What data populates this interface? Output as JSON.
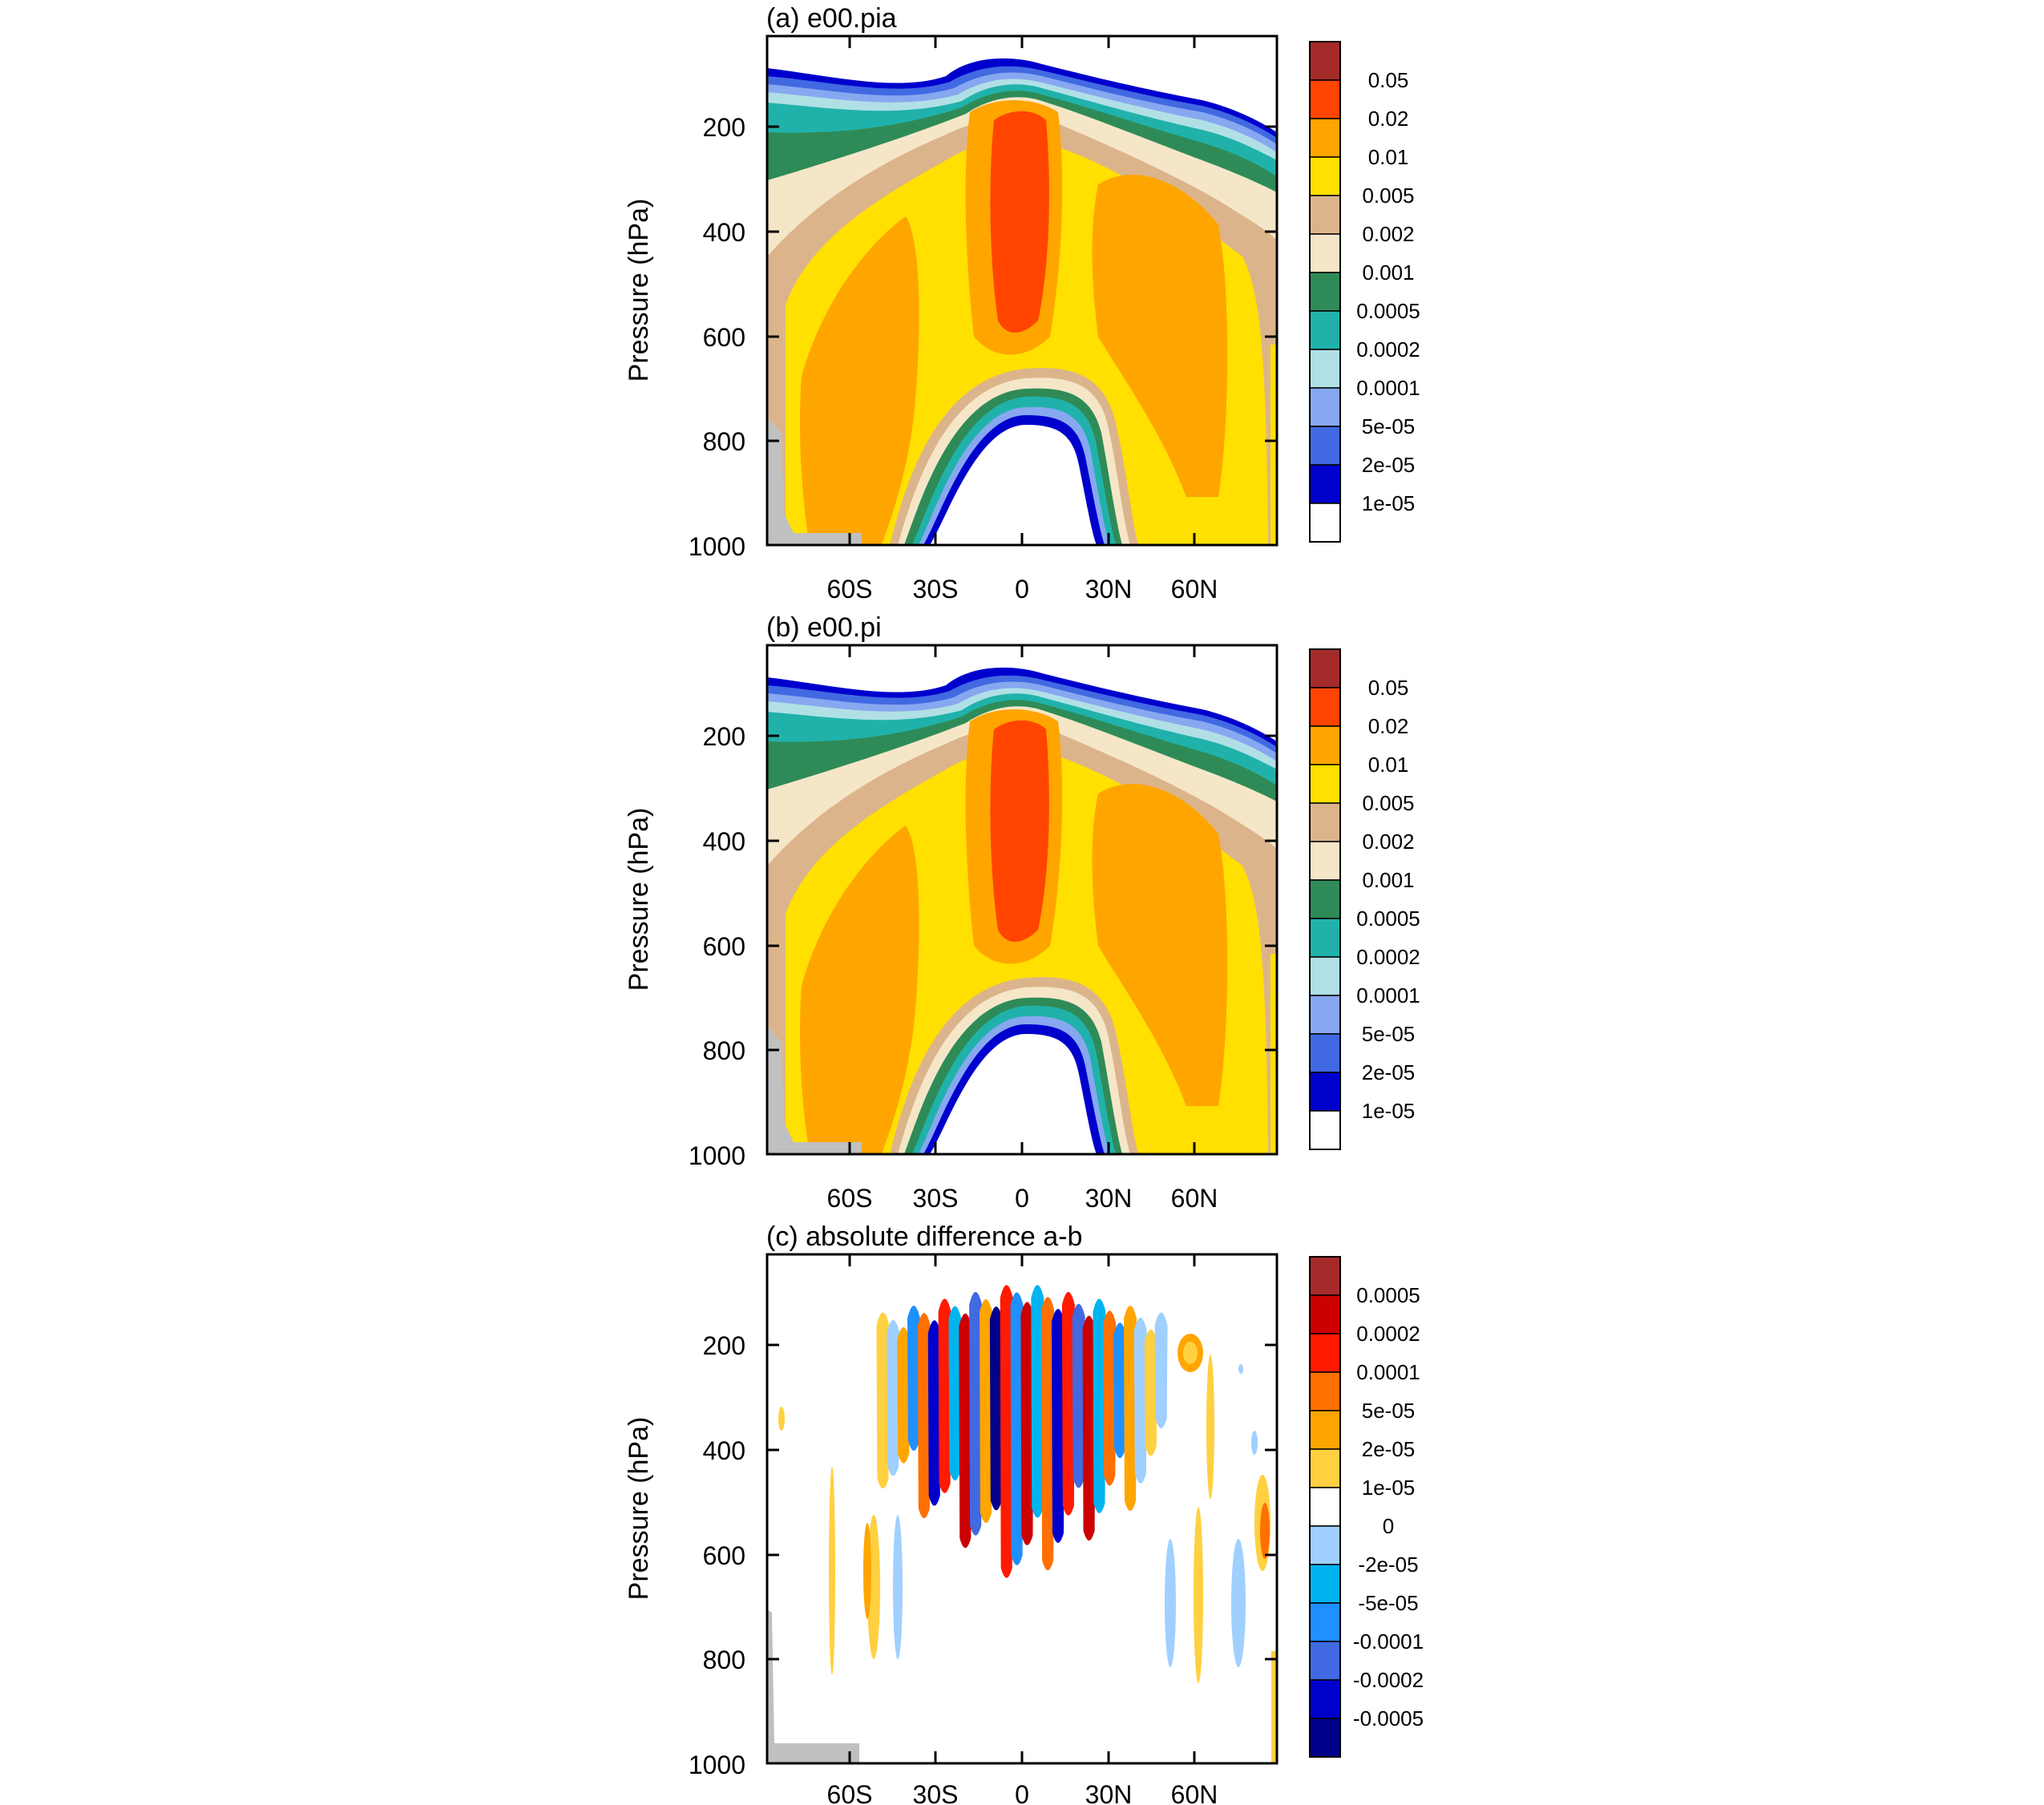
{
  "chart_data": [
    {
      "type": "heatmap",
      "title": "(a) e00.pia",
      "ylabel": "Pressure (hPa)",
      "xlabel": "",
      "x_ticks": [
        "60S",
        "30S",
        "0",
        "30N",
        "60N"
      ],
      "x_tick_values": [
        -60,
        -30,
        0,
        30,
        60
      ],
      "xlim": [
        -88,
        88
      ],
      "y_ticks": [
        "200",
        "400",
        "600",
        "800",
        "1000"
      ],
      "y_tick_values": [
        200,
        400,
        600,
        800,
        1000
      ],
      "ylim": [
        1000,
        25
      ],
      "colorbar": {
        "labels": [
          "0.05",
          "0.02",
          "0.01",
          "0.005",
          "0.002",
          "0.001",
          "0.0005",
          "0.0002",
          "0.0001",
          "5e-05",
          "2e-05",
          "1e-05"
        ],
        "colors": [
          "#a52a2a",
          "#ff4500",
          "#ffa500",
          "#ffe000",
          "#dcb48c",
          "#f5e6c8",
          "#2e8b57",
          "#20b2aa",
          "#b0e0e6",
          "#87a8f0",
          "#4169e1",
          "#0000cd",
          "#ffffff"
        ]
      }
    },
    {
      "type": "heatmap",
      "title": "(b) e00.pi",
      "ylabel": "Pressure (hPa)",
      "xlabel": "",
      "x_ticks": [
        "60S",
        "30S",
        "0",
        "30N",
        "60N"
      ],
      "x_tick_values": [
        -60,
        -30,
        0,
        30,
        60
      ],
      "xlim": [
        -88,
        88
      ],
      "y_ticks": [
        "200",
        "400",
        "600",
        "800",
        "1000"
      ],
      "y_tick_values": [
        200,
        400,
        600,
        800,
        1000
      ],
      "ylim": [
        1000,
        25
      ],
      "colorbar": {
        "labels": [
          "0.05",
          "0.02",
          "0.01",
          "0.005",
          "0.002",
          "0.001",
          "0.0005",
          "0.0002",
          "0.0001",
          "5e-05",
          "2e-05",
          "1e-05"
        ],
        "colors": [
          "#a52a2a",
          "#ff4500",
          "#ffa500",
          "#ffe000",
          "#dcb48c",
          "#f5e6c8",
          "#2e8b57",
          "#20b2aa",
          "#b0e0e6",
          "#87a8f0",
          "#4169e1",
          "#0000cd",
          "#ffffff"
        ]
      }
    },
    {
      "type": "heatmap",
      "title": "(c) absolute difference a-b",
      "ylabel": "Pressure (hPa)",
      "xlabel": "",
      "x_ticks": [
        "60S",
        "30S",
        "0",
        "30N",
        "60N"
      ],
      "x_tick_values": [
        -60,
        -30,
        0,
        30,
        60
      ],
      "xlim": [
        -88,
        88
      ],
      "y_ticks": [
        "200",
        "400",
        "600",
        "800",
        "1000"
      ],
      "y_tick_values": [
        200,
        400,
        600,
        800,
        1000
      ],
      "ylim": [
        1000,
        25
      ],
      "colorbar": {
        "labels": [
          "0.0005",
          "0.0002",
          "0.0001",
          "5e-05",
          "2e-05",
          "1e-05",
          "0",
          "-2e-05",
          "-5e-05",
          "-0.0001",
          "-0.0002",
          "-0.0005"
        ],
        "colors": [
          "#a52a2a",
          "#cc0000",
          "#ff1a00",
          "#ff7000",
          "#ffa500",
          "#ffd040",
          "#ffffff",
          "#a0d0ff",
          "#00b4f0",
          "#1e90ff",
          "#4169e1",
          "#0000cd",
          "#00008b"
        ]
      }
    }
  ]
}
